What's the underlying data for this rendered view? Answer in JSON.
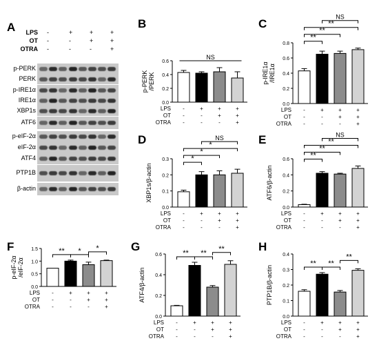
{
  "panel_letters": [
    "A",
    "B",
    "C",
    "D",
    "E",
    "F",
    "G",
    "H"
  ],
  "conditions": {
    "names": [
      "LPS",
      "OT",
      "OTRA"
    ],
    "pattern": [
      [
        "-",
        "+",
        "+",
        "+"
      ],
      [
        "-",
        "-",
        "+",
        "+"
      ],
      [
        "-",
        "-",
        "-",
        "+"
      ]
    ]
  },
  "blot_labels": [
    "p-PERK",
    "PERK",
    "p-IRE1α",
    "IRE1α",
    "XBP1s",
    "ATF6",
    "p-eIF-2α",
    "eIF-2α",
    "ATF4",
    "PTP1B",
    "β-actin"
  ],
  "chart_data": [
    {
      "id": "B",
      "type": "bar",
      "ylabel": "p-PERK\n/PERK",
      "ylim": [
        0,
        0.6
      ],
      "yticks": [
        "0.0",
        "0.2",
        "0.4",
        "0.6"
      ],
      "values": [
        0.43,
        0.42,
        0.44,
        0.35
      ],
      "errors": [
        0.03,
        0.02,
        0.06,
        0.09
      ],
      "colors": [
        "#ffffff",
        "#000000",
        "#8c8c8c",
        "#d3d3d3"
      ],
      "brackets": [
        {
          "from": 0,
          "to": 3,
          "level": 0,
          "label": "NS",
          "type": "flat"
        }
      ]
    },
    {
      "id": "C",
      "type": "bar",
      "ylabel": "p-IRE1α\n/IRE1α",
      "ylim": [
        0,
        0.8
      ],
      "yticks": [
        "0.0",
        "0.2",
        "0.4",
        "0.6",
        "0.8"
      ],
      "values": [
        0.43,
        0.65,
        0.66,
        0.71
      ],
      "errors": [
        0.03,
        0.04,
        0.03,
        0.02
      ],
      "colors": [
        "#ffffff",
        "#000000",
        "#8c8c8c",
        "#d3d3d3"
      ],
      "brackets": [
        {
          "from": 0,
          "to": 1,
          "level": 0,
          "label": "**"
        },
        {
          "from": 0,
          "to": 2,
          "level": 1,
          "label": "**"
        },
        {
          "from": 0,
          "to": 3,
          "level": 2,
          "label": "**"
        },
        {
          "from": 1,
          "to": 3,
          "level": 3,
          "label": "NS"
        }
      ]
    },
    {
      "id": "D",
      "type": "bar",
      "ylabel": "XBP1s/β-actin",
      "ylim": [
        0,
        0.3
      ],
      "yticks": [
        "0.0",
        "0.1",
        "0.2",
        "0.3"
      ],
      "values": [
        0.095,
        0.2,
        0.2,
        0.21
      ],
      "errors": [
        0.01,
        0.02,
        0.025,
        0.025
      ],
      "colors": [
        "#ffffff",
        "#000000",
        "#8c8c8c",
        "#d3d3d3"
      ],
      "brackets": [
        {
          "from": 0,
          "to": 1,
          "level": 0,
          "label": "*"
        },
        {
          "from": 0,
          "to": 2,
          "level": 1,
          "label": "*"
        },
        {
          "from": 0,
          "to": 3,
          "level": 2,
          "label": "*"
        },
        {
          "from": 1,
          "to": 3,
          "level": 3,
          "label": "NS"
        }
      ]
    },
    {
      "id": "E",
      "type": "bar",
      "ylabel": "ATF6/β-actin",
      "ylim": [
        0,
        0.6
      ],
      "yticks": [
        "0.0",
        "0.2",
        "0.4",
        "0.6"
      ],
      "values": [
        0.03,
        0.42,
        0.41,
        0.48
      ],
      "errors": [
        0.005,
        0.02,
        0.01,
        0.03
      ],
      "colors": [
        "#ffffff",
        "#000000",
        "#8c8c8c",
        "#d3d3d3"
      ],
      "brackets": [
        {
          "from": 0,
          "to": 1,
          "level": 0,
          "label": "**"
        },
        {
          "from": 0,
          "to": 2,
          "level": 1,
          "label": "**"
        },
        {
          "from": 0,
          "to": 3,
          "level": 2,
          "label": "**"
        },
        {
          "from": 1,
          "to": 3,
          "level": 3,
          "label": "NS"
        }
      ]
    },
    {
      "id": "F",
      "type": "bar",
      "ylabel": "p-eIF-2α\n/eIF-2α",
      "ylim": [
        0,
        1.5
      ],
      "yticks": [
        "0.0",
        "0.5",
        "1.0",
        "1.5"
      ],
      "values": [
        0.72,
        1.0,
        0.86,
        1.02
      ],
      "errors": [
        0.0,
        0.04,
        0.1,
        0.02
      ],
      "colors": [
        "#ffffff",
        "#000000",
        "#8c8c8c",
        "#d3d3d3"
      ],
      "brackets": [
        {
          "from": 0,
          "to": 1,
          "level": 0,
          "label": "**"
        },
        {
          "from": 1,
          "to": 2,
          "level": 0,
          "label": "*"
        },
        {
          "from": 2,
          "to": 3,
          "level": 1,
          "label": "*"
        }
      ]
    },
    {
      "id": "G",
      "type": "bar",
      "ylabel": "ATF4/β-actin",
      "ylim": [
        0,
        0.6
      ],
      "yticks": [
        "0.0",
        "0.2",
        "0.4",
        "0.6"
      ],
      "values": [
        0.1,
        0.49,
        0.28,
        0.5
      ],
      "errors": [
        0.004,
        0.03,
        0.015,
        0.035
      ],
      "colors": [
        "#ffffff",
        "#000000",
        "#8c8c8c",
        "#d3d3d3"
      ],
      "brackets": [
        {
          "from": 0,
          "to": 1,
          "level": 0,
          "label": "**"
        },
        {
          "from": 1,
          "to": 2,
          "level": 0,
          "label": "**"
        },
        {
          "from": 2,
          "to": 3,
          "level": 1,
          "label": "**"
        }
      ]
    },
    {
      "id": "H",
      "type": "bar",
      "ylabel": "PTP1B/β-actin",
      "ylim": [
        0,
        0.4
      ],
      "yticks": [
        "0.0",
        "0.1",
        "0.2",
        "0.3",
        "0.4"
      ],
      "values": [
        0.16,
        0.27,
        0.155,
        0.295
      ],
      "errors": [
        0.01,
        0.01,
        0.01,
        0.01
      ],
      "colors": [
        "#ffffff",
        "#000000",
        "#8c8c8c",
        "#d3d3d3"
      ],
      "brackets": [
        {
          "from": 0,
          "to": 1,
          "level": 0,
          "label": "**"
        },
        {
          "from": 1,
          "to": 2,
          "level": 0,
          "label": "**"
        },
        {
          "from": 2,
          "to": 3,
          "level": 1,
          "label": "**"
        }
      ]
    }
  ]
}
